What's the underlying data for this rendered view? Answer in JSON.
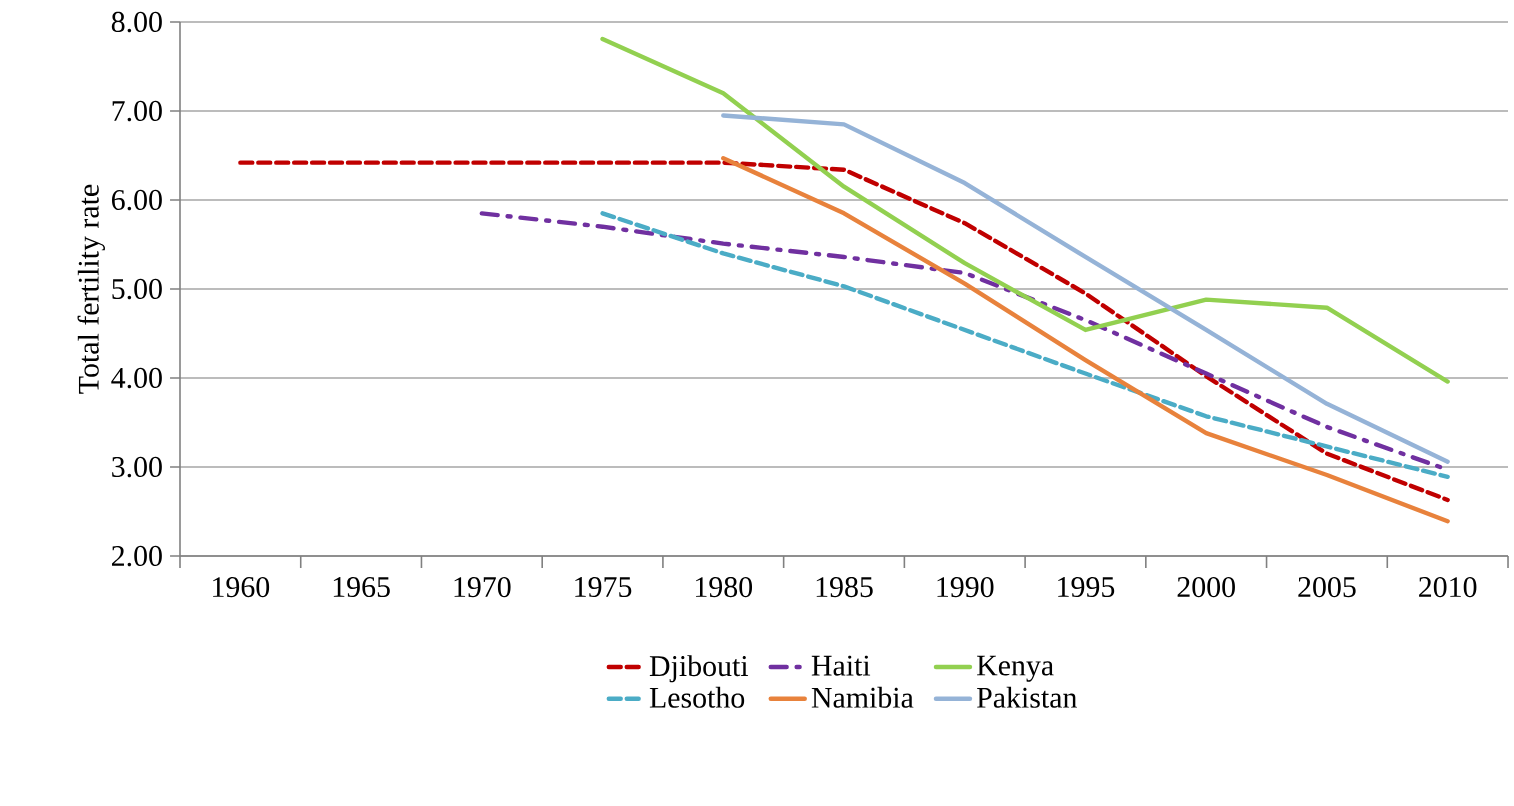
{
  "chart_data": {
    "type": "line",
    "ylabel": "Total fertility rate",
    "categories": [
      "1960",
      "1965",
      "1970",
      "1975",
      "1980",
      "1985",
      "1990",
      "1995",
      "2000",
      "2005",
      "2010"
    ],
    "ylim": [
      2,
      8
    ],
    "yticks": [
      {
        "value": 2,
        "label": "2.00"
      },
      {
        "value": 3,
        "label": "3.00"
      },
      {
        "value": 4,
        "label": "4.00"
      },
      {
        "value": 5,
        "label": "5.00"
      },
      {
        "value": 6,
        "label": "6.00"
      },
      {
        "value": 7,
        "label": "7.00"
      },
      {
        "value": 8,
        "label": "8.00"
      }
    ],
    "grid": "y",
    "legend": "bottom",
    "marker": "none",
    "series": [
      {
        "name": "Djibouti",
        "color": "#c00000",
        "line_style": "dashed",
        "values": [
          6.42,
          6.42,
          6.42,
          6.42,
          6.42,
          6.34,
          5.74,
          4.95,
          4.02,
          3.15,
          2.63
        ]
      },
      {
        "name": "Haiti",
        "color": "#7030a0",
        "line_style": "dashdot",
        "values": [
          null,
          null,
          5.85,
          5.7,
          5.51,
          5.36,
          5.18,
          4.65,
          4.05,
          3.45,
          2.97
        ]
      },
      {
        "name": "Kenya",
        "color": "#92d050",
        "line_style": "solid",
        "values": [
          null,
          null,
          null,
          7.81,
          7.2,
          6.15,
          5.29,
          4.54,
          4.88,
          4.79,
          3.96
        ]
      },
      {
        "name": "Lesotho",
        "color": "#4bacc6",
        "line_style": "dashed",
        "values": [
          null,
          null,
          null,
          5.85,
          5.4,
          5.03,
          4.54,
          4.05,
          3.57,
          3.23,
          2.89
        ]
      },
      {
        "name": "Namibia",
        "color": "#e8823c",
        "line_style": "solid",
        "values": [
          null,
          null,
          null,
          null,
          6.47,
          5.85,
          5.06,
          4.2,
          3.38,
          2.91,
          2.39
        ]
      },
      {
        "name": "Pakistan",
        "color": "#95b3d7",
        "line_style": "solid",
        "values": [
          null,
          null,
          null,
          null,
          6.95,
          6.85,
          6.19,
          5.36,
          4.54,
          3.71,
          3.06
        ]
      }
    ]
  }
}
